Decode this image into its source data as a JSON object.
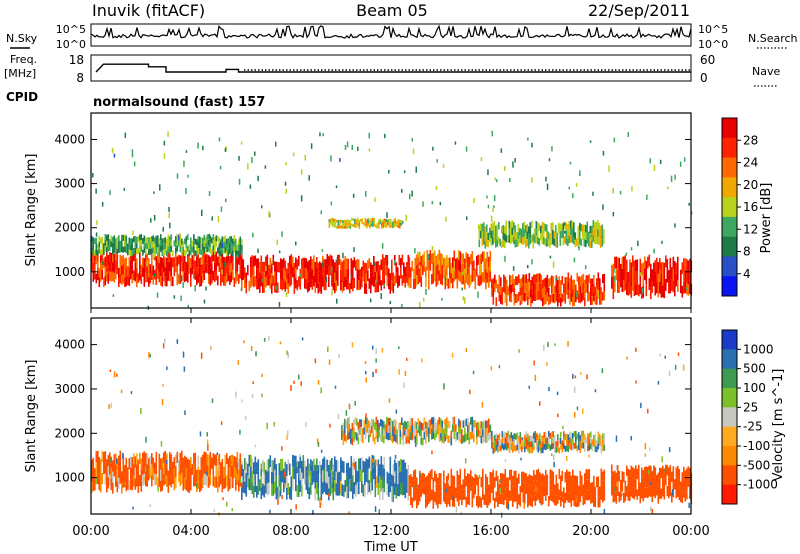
{
  "header": {
    "radar": "Inuvik (fitACF)",
    "beam": "Beam 05",
    "date": "22/Sep/2011"
  },
  "noise_panel": {
    "left_label": "N.Sky",
    "right_label": "N.Search",
    "left_ticks": [
      "10^5",
      "10^0"
    ],
    "right_ticks": [
      "10^5",
      "10^0"
    ]
  },
  "freq_panel": {
    "left_label_1": "Freq.",
    "left_label_2": "[MHz]",
    "right_label": "Nave",
    "left_ticks": [
      "18",
      "8"
    ],
    "right_ticks": [
      "60",
      "0"
    ],
    "cpid_label": "CPID",
    "program": "normalsound (fast) 157"
  },
  "colors": {
    "power": [
      "#0a14f0",
      "#2850c8",
      "#1f7a4a",
      "#3fa860",
      "#b8d21e",
      "#f0a800",
      "#ff6a00",
      "#ff2400",
      "#e80000"
    ],
    "velocity": [
      "#ff1a00",
      "#ff5000",
      "#ff8a00",
      "#ffaa20",
      "#c8c8c0",
      "#7cc02a",
      "#3e9a50",
      "#2a6fb0",
      "#1c3cc8"
    ]
  },
  "chart_data": [
    {
      "type": "heatmap",
      "title": "",
      "xlabel": "Time UT",
      "ylabel": "Slant Range [km]",
      "x_ticks": [
        "00:00",
        "04:00",
        "08:00",
        "12:00",
        "16:00",
        "20:00",
        "00:00"
      ],
      "y_ticks": [
        "1000",
        "2000",
        "3000",
        "4000"
      ],
      "ylim": [
        180,
        4600
      ],
      "colorbar": {
        "label": "Power [dB]",
        "ticks": [
          "28",
          "24",
          "20",
          "16",
          "12",
          "8",
          "4"
        ],
        "range": [
          0,
          32
        ]
      },
      "bands": [
        {
          "t0": 0.0,
          "t1": 6.0,
          "r0": 750,
          "r1": 1400,
          "power": 27
        },
        {
          "t0": 0.0,
          "t1": 6.0,
          "r0": 1400,
          "r1": 1800,
          "power": 12
        },
        {
          "t0": 6.0,
          "t1": 12.7,
          "r0": 600,
          "r1": 1300,
          "power": 28
        },
        {
          "t0": 9.5,
          "t1": 12.5,
          "r0": 2000,
          "r1": 2200,
          "power": 18
        },
        {
          "t0": 12.7,
          "t1": 16.0,
          "r0": 700,
          "r1": 1400,
          "power": 24
        },
        {
          "t0": 15.5,
          "t1": 20.5,
          "r0": 1600,
          "r1": 2100,
          "power": 14
        },
        {
          "t0": 16.0,
          "t1": 20.5,
          "r0": 300,
          "r1": 900,
          "power": 26
        },
        {
          "t0": 20.8,
          "t1": 24.0,
          "r0": 500,
          "r1": 1300,
          "power": 28
        }
      ]
    },
    {
      "type": "heatmap",
      "title": "",
      "xlabel": "Time UT",
      "ylabel": "Slant Range [km]",
      "x_ticks": [
        "00:00",
        "04:00",
        "08:00",
        "12:00",
        "16:00",
        "20:00",
        "00:00"
      ],
      "y_ticks": [
        "1000",
        "2000",
        "3000",
        "4000"
      ],
      "ylim": [
        180,
        4600
      ],
      "colorbar": {
        "label": "Velocity [m s^-1]",
        "ticks": [
          "1000",
          "500",
          "100",
          "25",
          "-25",
          "-100",
          "-500",
          "-1000"
        ],
        "range": [
          -1500,
          1500
        ]
      },
      "bands": [
        {
          "t0": 0.0,
          "t1": 6.0,
          "r0": 750,
          "r1": 1500,
          "velocity": -150
        },
        {
          "t0": 6.0,
          "t1": 12.7,
          "r0": 600,
          "r1": 1400,
          "velocity": 120
        },
        {
          "t0": 10.0,
          "t1": 16.0,
          "r0": 1800,
          "r1": 2300,
          "velocity": 0
        },
        {
          "t0": 12.7,
          "t1": 20.5,
          "r0": 400,
          "r1": 1100,
          "velocity": -250
        },
        {
          "t0": 16.0,
          "t1": 20.5,
          "r0": 1600,
          "r1": 2000,
          "velocity": 0
        },
        {
          "t0": 20.8,
          "t1": 24.0,
          "r0": 500,
          "r1": 1200,
          "velocity": -300
        }
      ]
    }
  ]
}
